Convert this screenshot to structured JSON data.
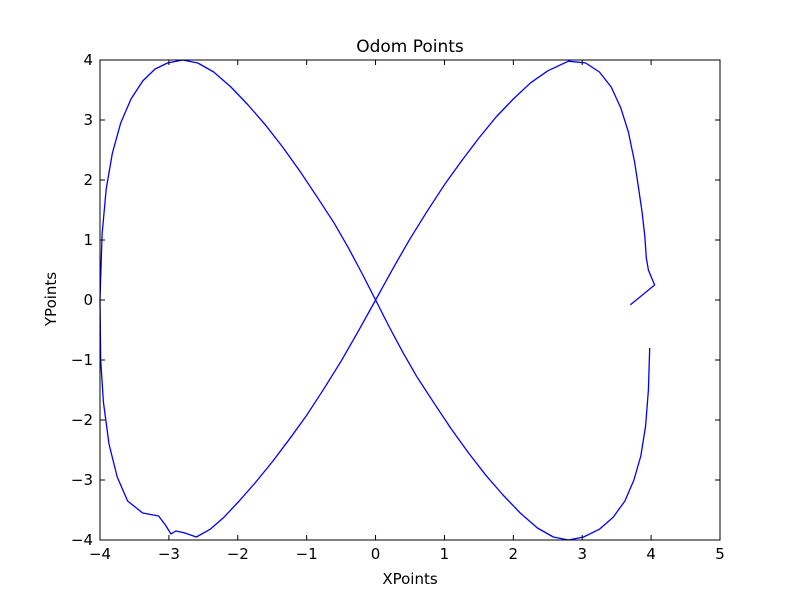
{
  "chart_data": {
    "type": "line",
    "title": "Odom Points",
    "xlabel": "XPoints",
    "ylabel": "YPoints",
    "xlim": [
      -4,
      5
    ],
    "ylim": [
      -4,
      4
    ],
    "xticks": [
      -4,
      -3,
      -2,
      -1,
      0,
      1,
      2,
      3,
      4,
      5
    ],
    "yticks": [
      -4,
      -3,
      -2,
      -1,
      0,
      1,
      2,
      3,
      4
    ],
    "xtick_labels": [
      "−4",
      "−3",
      "−2",
      "−1",
      "0",
      "1",
      "2",
      "3",
      "4",
      "5"
    ],
    "ytick_labels": [
      "−4",
      "−3",
      "−2",
      "−1",
      "0",
      "1",
      "2",
      "3",
      "4"
    ],
    "grid": false,
    "legend": "none",
    "line_color": "#0000ff",
    "series": [
      {
        "x": [
          3.98,
          3.96,
          3.92,
          3.85,
          3.75,
          3.62,
          3.45,
          3.25,
          3.02,
          2.8,
          2.58,
          2.35,
          2.1,
          1.85,
          1.6,
          1.35,
          1.1,
          0.85,
          0.6,
          0.4,
          0.2,
          0.0,
          -0.2,
          -0.4,
          -0.6,
          -0.85,
          -1.1,
          -1.35,
          -1.6,
          -1.85,
          -2.1,
          -2.35,
          -2.58,
          -2.8,
          -3.02,
          -3.2,
          -3.38,
          -3.55,
          -3.7,
          -3.82,
          -3.91,
          -3.97,
          -4.0,
          -3.99,
          -3.95,
          -3.87,
          -3.75,
          -3.6,
          -3.38,
          -3.15,
          -3.05,
          -2.97,
          -2.9,
          -2.78,
          -2.6,
          -2.4,
          -2.2,
          -1.98,
          -1.75,
          -1.5,
          -1.25,
          -1.0,
          -0.75,
          -0.5,
          -0.25,
          0.0,
          0.25,
          0.5,
          0.75,
          1.0,
          1.25,
          1.5,
          1.75,
          2.0,
          2.25,
          2.5,
          2.8,
          3.05,
          3.25,
          3.42,
          3.56,
          3.67,
          3.76,
          3.82,
          3.87,
          3.91,
          3.93,
          3.96,
          4.05,
          3.7
        ],
        "y": [
          -0.8,
          -1.5,
          -2.1,
          -2.6,
          -3.0,
          -3.35,
          -3.62,
          -3.82,
          -3.95,
          -4.0,
          -3.95,
          -3.8,
          -3.55,
          -3.25,
          -2.92,
          -2.55,
          -2.15,
          -1.72,
          -1.28,
          -0.88,
          -0.45,
          0.0,
          0.45,
          0.88,
          1.28,
          1.72,
          2.15,
          2.55,
          2.92,
          3.25,
          3.55,
          3.8,
          3.95,
          4.0,
          3.95,
          3.85,
          3.65,
          3.35,
          2.95,
          2.45,
          1.85,
          1.1,
          0.0,
          -1.0,
          -1.7,
          -2.4,
          -2.95,
          -3.35,
          -3.55,
          -3.6,
          -3.75,
          -3.9,
          -3.85,
          -3.88,
          -3.95,
          -3.82,
          -3.62,
          -3.35,
          -3.05,
          -2.7,
          -2.32,
          -1.92,
          -1.48,
          -1.02,
          -0.52,
          0.0,
          0.52,
          1.02,
          1.48,
          1.92,
          2.32,
          2.7,
          3.05,
          3.35,
          3.62,
          3.82,
          3.98,
          3.95,
          3.8,
          3.55,
          3.2,
          2.8,
          2.3,
          1.85,
          1.45,
          1.05,
          0.7,
          0.5,
          0.25,
          -0.08
        ]
      }
    ]
  }
}
